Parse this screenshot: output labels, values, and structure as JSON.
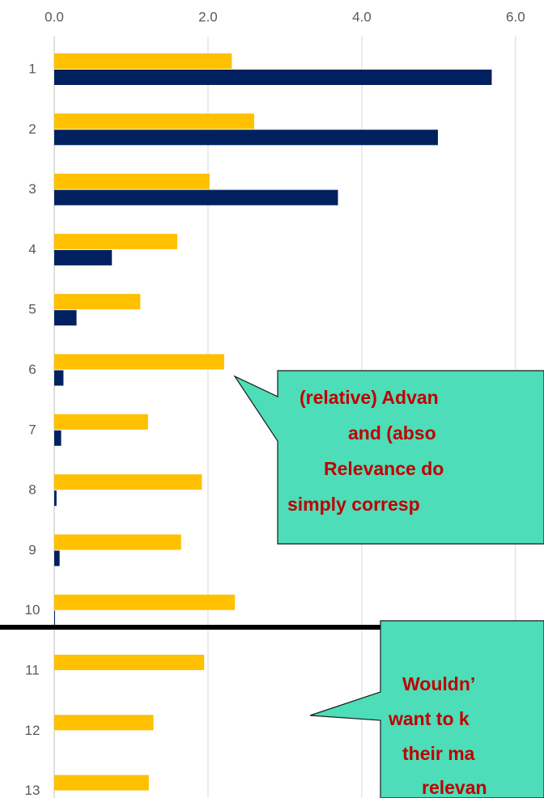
{
  "chart_data": {
    "type": "bar",
    "orientation": "horizontal",
    "categories": [
      "1",
      "2",
      "3",
      "4",
      "5",
      "6",
      "7",
      "8",
      "9",
      "10",
      "11",
      "12",
      "13"
    ],
    "series": [
      {
        "color": "#ffc000",
        "values": [
          2.31,
          2.6,
          2.02,
          1.6,
          1.12,
          2.21,
          1.22,
          1.92,
          1.65,
          2.35,
          1.95,
          1.29,
          1.23
        ]
      },
      {
        "color": "#002060",
        "values": [
          5.69,
          4.99,
          3.69,
          0.75,
          0.29,
          0.12,
          0.09,
          0.03,
          0.07,
          0.01,
          0,
          0,
          0
        ]
      }
    ],
    "xlim": [
      0,
      6.37
    ],
    "xticks": [
      {
        "value": 0,
        "label": "0.0"
      },
      {
        "value": 2,
        "label": "2.0"
      },
      {
        "value": 4,
        "label": "4.0"
      },
      {
        "value": 6,
        "label": "6.0"
      }
    ],
    "grid": true,
    "annotations": [
      {
        "lines": [
          "(relative) Advan",
          "and (abso",
          "Relevance do",
          "simply corresp"
        ]
      },
      {
        "lines": [
          "Wouldn’",
          "want to k",
          "their ma",
          "relevan"
        ]
      }
    ]
  }
}
